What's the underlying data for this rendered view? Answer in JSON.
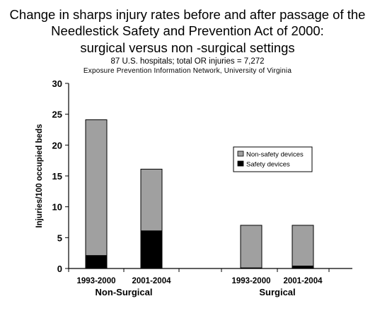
{
  "title_lines": [
    "Change in sharps injury rates before and after passage of the",
    "Needlestick Safety and Prevention Act of 2000:",
    "surgical versus non -surgical settings"
  ],
  "subtitle": "87 U.S. hospitals; total OR injuries = 7,272",
  "source": "Exposure Prevention Information Network, University of Virginia",
  "chart_data": {
    "type": "bar",
    "stacked": true,
    "ylabel": "Injuries/100 occupied beds",
    "ylim": [
      0,
      30
    ],
    "yticks": [
      0,
      5,
      10,
      15,
      20,
      25,
      30
    ],
    "grid": false,
    "legend_position": "right",
    "groups": [
      {
        "label": "Non-Surgical",
        "categories": [
          "1993-2000",
          "2001-2004"
        ]
      },
      {
        "label": "Surgical",
        "categories": [
          "1993-2000",
          "2001-2004"
        ]
      }
    ],
    "categories": [
      "1993-2000",
      "2001-2004",
      "1993-2000",
      "2001-2004"
    ],
    "series": [
      {
        "name": "Safety devices",
        "color": "#000000",
        "values": [
          2.1,
          6.1,
          0.1,
          0.4
        ]
      },
      {
        "name": "Non-safety devices",
        "color": "#a0a0a0",
        "values": [
          22.0,
          10.0,
          6.9,
          6.6
        ]
      }
    ],
    "legend_order": [
      "Non-safety devices",
      "Safety devices"
    ]
  }
}
